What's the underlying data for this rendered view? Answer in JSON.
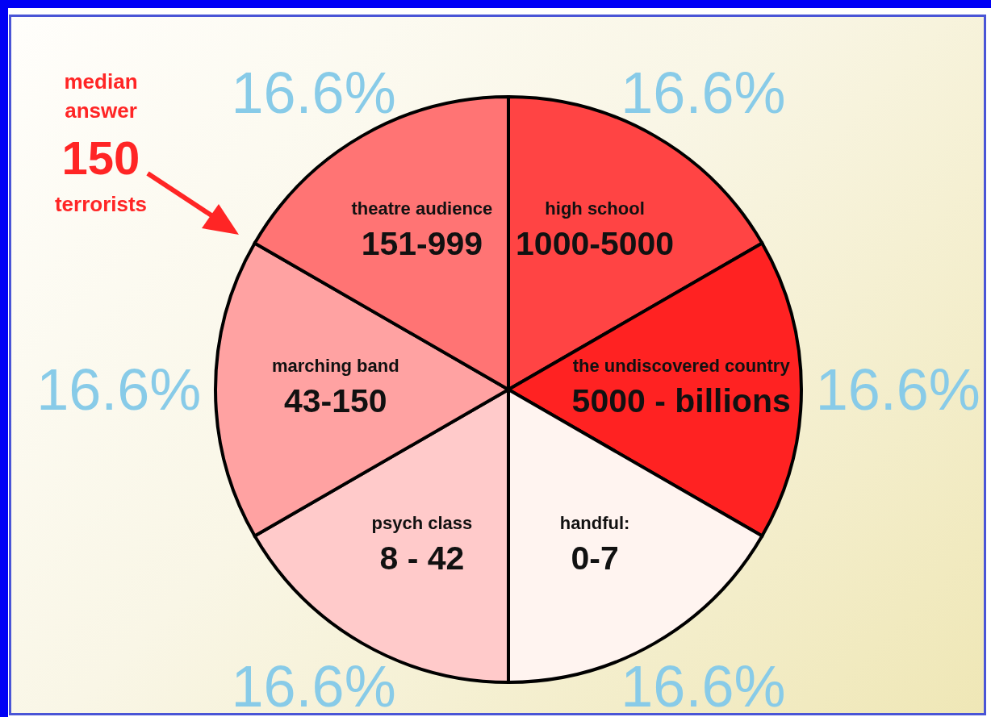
{
  "chart_data": {
    "type": "pie",
    "categories": [
      "high school\n1000-5000",
      "the undiscovered country\n5000 - billions",
      "handful:\n0-7",
      "psych class\n8 - 42",
      "marching band\n43-150",
      "theatre audience\n151-999"
    ],
    "values": [
      16.6,
      16.6,
      16.6,
      16.6,
      16.6,
      16.6
    ],
    "value_labels": [
      "16.6%",
      "16.6%",
      "16.6%",
      "16.6%",
      "16.6%",
      "16.6%"
    ],
    "colors": [
      "#ff4444",
      "#ff2222",
      "#fff4f0",
      "#ffcaca",
      "#ffa2a2",
      "#ff7474"
    ],
    "annotations": [
      "median\nanswer\n150\nterrorists"
    ]
  }
}
